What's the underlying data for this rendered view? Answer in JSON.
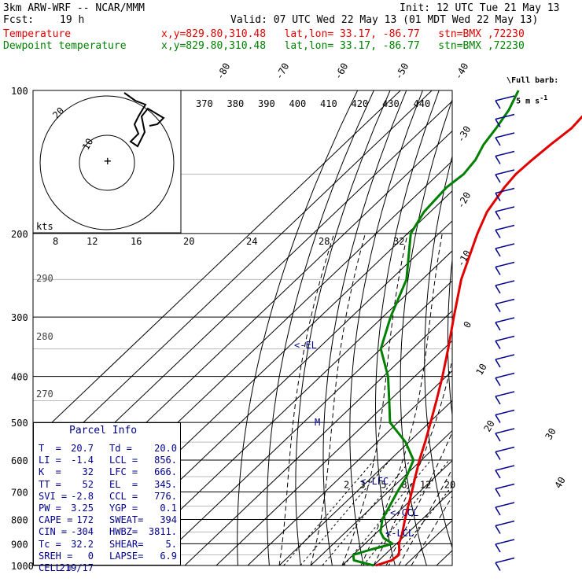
{
  "header": {
    "model": "3km ARW-WRF -- NCAR/MMM",
    "init": "Init: 12 UTC Tue 21 May 13",
    "fcst_label": "Fcst:",
    "fcst_hours": "19 h",
    "valid": "Valid: 07 UTC Wed 22 May 13 (01 MDT Wed 22 May 13)",
    "temperature_label": "Temperature",
    "dewpoint_label": "Dewpoint temperature",
    "location": "x,y=829.80,310.48   lat,lon= 33.17, -86.77   stn=BMX ,72230"
  },
  "barb_legend": {
    "line1": "Full barb:",
    "line2": "5 m s",
    "sup": "-1"
  },
  "hodograph": {
    "units": "kts",
    "ring_labels": [
      "10",
      "20"
    ]
  },
  "parcel": {
    "title": "Parcel Info",
    "rows": [
      [
        "T  =",
        "20.7",
        "Td =",
        "20.0"
      ],
      [
        "LI =",
        "-1.4",
        "LCL =",
        "856."
      ],
      [
        "K  =",
        "32",
        "LFC =",
        "666."
      ],
      [
        "TT =",
        "52",
        "EL  =",
        "345."
      ],
      [
        "SVI =",
        "-2.8",
        "CCL =",
        "776."
      ],
      [
        "PW =",
        "3.25",
        "YGP =",
        "0.1"
      ],
      [
        "CAPE =",
        "172",
        "SWEAT=",
        "394"
      ],
      [
        "CIN =",
        "-304",
        "HWBZ=",
        "3811."
      ],
      [
        "Tc =",
        "32.2",
        "SHEAR=",
        "5."
      ],
      [
        "SREH =",
        "0",
        "LAPSE=",
        "6.9"
      ],
      [
        "CELL =",
        "219/17",
        "",
        ""
      ]
    ]
  },
  "annotations": {
    "el": "<-EL",
    "lfc": "<-LFC",
    "ccl": "<-CCL",
    "lcl": "<-LCL",
    "m": "M"
  },
  "colors": {
    "temperature": "#e00000",
    "dewpoint": "#008000",
    "parcel": "#00008b",
    "barbs": "#00008b"
  },
  "chart_data": {
    "type": "line",
    "title": "",
    "ylabel": "",
    "y_scale": "log-pressure",
    "ylim": [
      1000,
      100
    ],
    "pressure_ticks": [
      100,
      200,
      300,
      400,
      500,
      600,
      700,
      800,
      900,
      1000
    ],
    "isotherm_top_labels": [
      "-80",
      "-70",
      "-60",
      "-50",
      "-40"
    ],
    "isotherm_right_labels": [
      "-30",
      "-20",
      "-10",
      "0",
      "10",
      "20",
      "30",
      "40"
    ],
    "theta_labels": [
      "370",
      "380",
      "390",
      "400",
      "410",
      "420",
      "430",
      "440"
    ],
    "theta_left_labels": [
      "290",
      "280",
      "270"
    ],
    "mixing_ratio_labels": [
      "2",
      "3",
      "5",
      "8",
      "12",
      "20"
    ],
    "hodo_speed_labels": [
      "8",
      "12",
      "16",
      "20",
      "24",
      "28",
      "32"
    ],
    "series": [
      {
        "name": "Temperature",
        "p": [
          1000,
          975,
          950,
          925,
          900,
          875,
          850,
          800,
          750,
          700,
          650,
          600,
          550,
          500,
          450,
          400,
          350,
          300,
          250,
          200,
          180,
          160,
          150,
          140,
          130,
          120,
          110,
          100
        ],
        "t": [
          20.7,
          24.0,
          24.5,
          22.8,
          20.8,
          19.5,
          18.0,
          14.6,
          11.2,
          7.6,
          3.6,
          -0.6,
          -4.8,
          -9.6,
          -15.0,
          -21.2,
          -28.6,
          -37.4,
          -47.6,
          -57.8,
          -62.0,
          -64.6,
          -65.4,
          -65.0,
          -64.2,
          -63.0,
          -63.8,
          -67.5
        ]
      },
      {
        "name": "Dewpoint temperature",
        "p": [
          1000,
          975,
          950,
          925,
          900,
          875,
          850,
          800,
          750,
          700,
          650,
          600,
          550,
          500,
          450,
          400,
          350,
          300,
          250,
          200,
          180,
          160,
          150,
          140,
          130,
          120,
          110,
          100
        ],
        "t": [
          20.0,
          12.0,
          10.0,
          14.0,
          18.8,
          14.0,
          11.0,
          7.4,
          5.3,
          3.0,
          0.8,
          -2.5,
          -11.0,
          -22.5,
          -30.0,
          -38.5,
          -50.0,
          -57.5,
          -65.0,
          -79.0,
          -82.0,
          -83.0,
          -82.0,
          -83.0,
          -85.5,
          -87.0,
          -89.0,
          -92.5
        ]
      }
    ],
    "wind_profile_note": "wind barbs plotted along right side from 1000 to 100 hPa"
  }
}
